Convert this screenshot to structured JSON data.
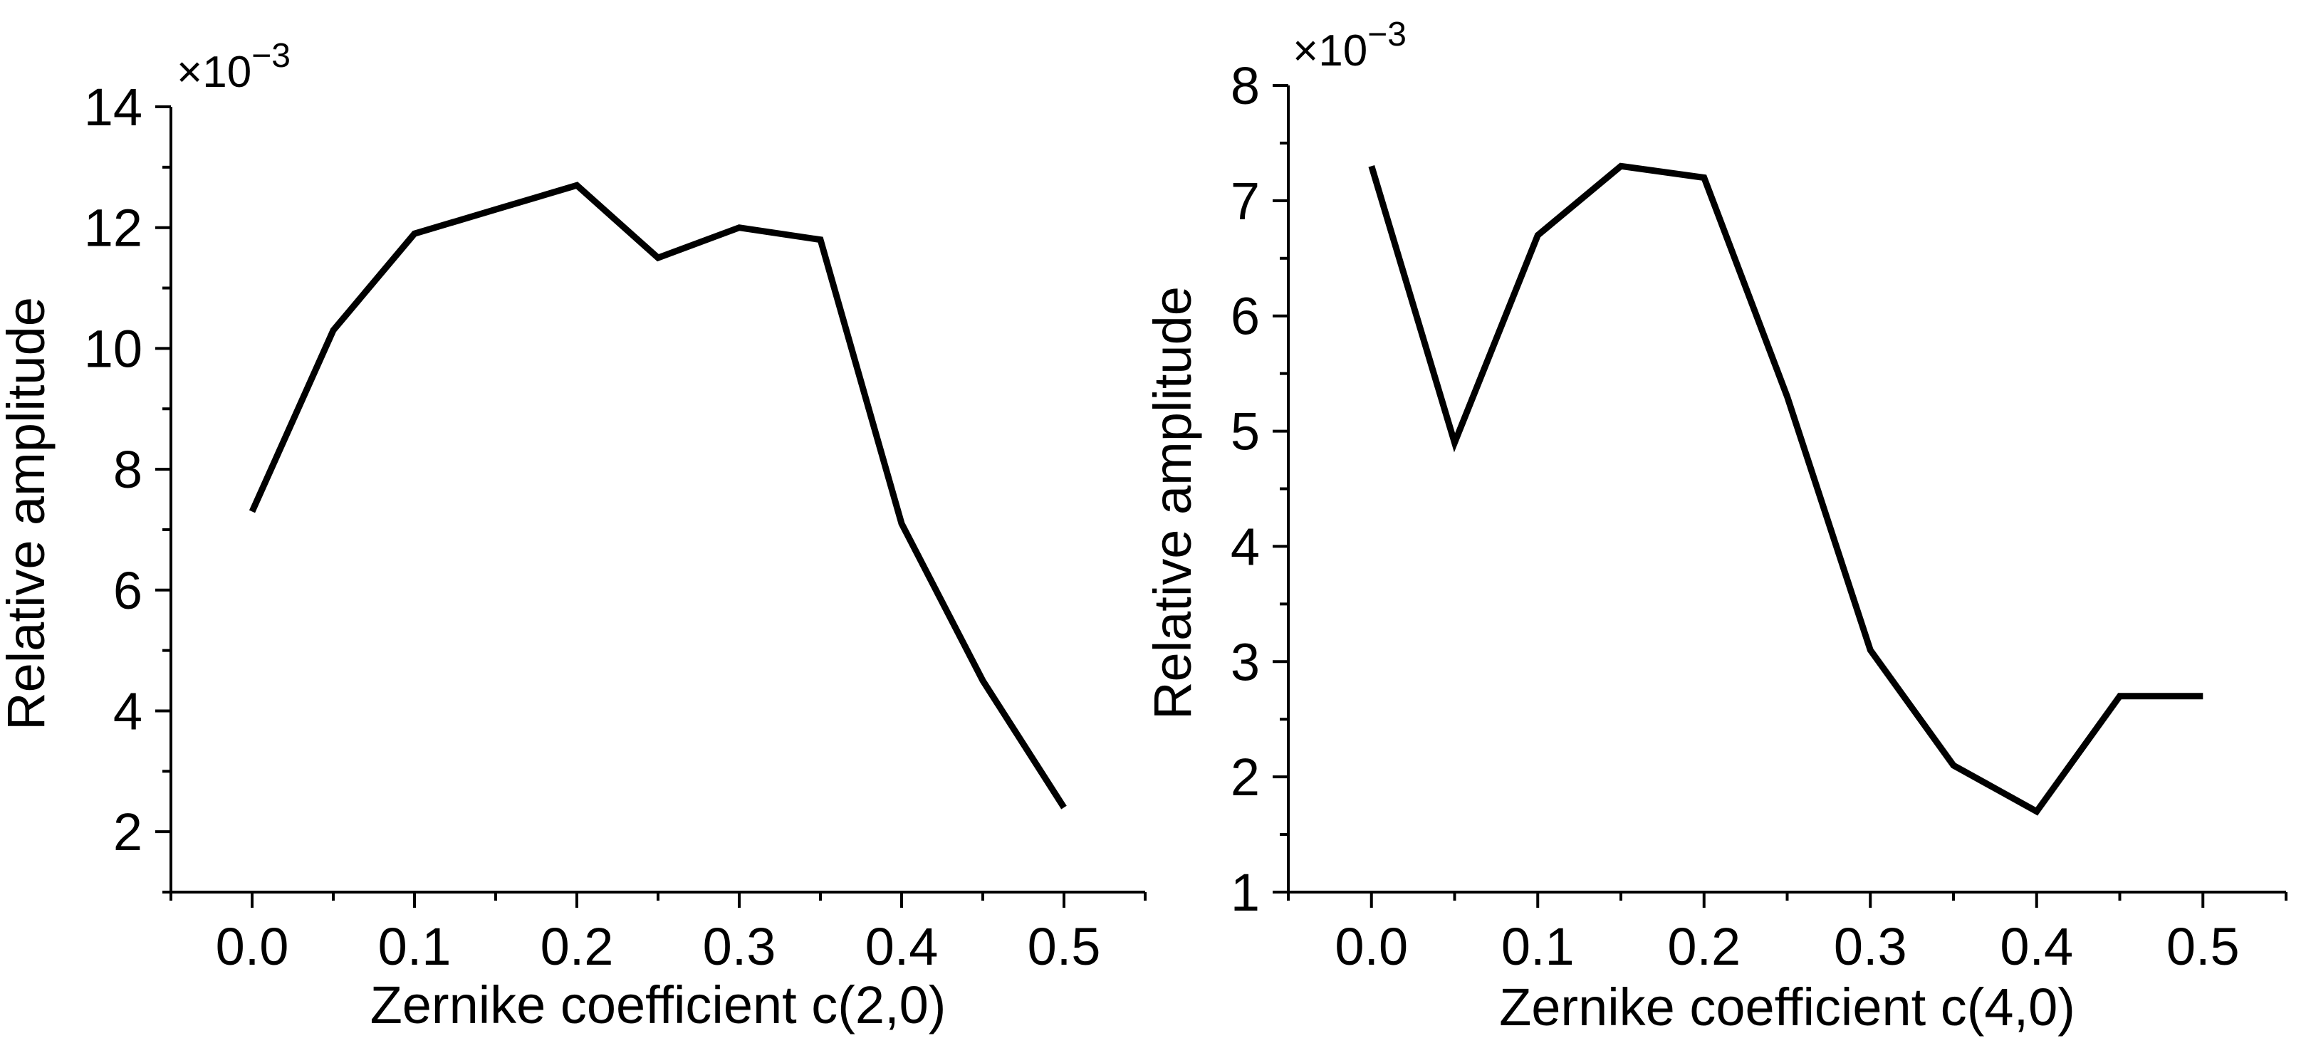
{
  "chart_data": [
    {
      "type": "line",
      "title": "",
      "xlabel": "Zernike coefficient c(2,0)",
      "ylabel": "Relative amplitude",
      "y_multiplier": {
        "base": "×10",
        "exponent": "−3"
      },
      "xlim": [
        -0.05,
        0.55
      ],
      "ylim": [
        1,
        14
      ],
      "xticks": [
        0.0,
        0.1,
        0.2,
        0.3,
        0.4,
        0.5
      ],
      "xtick_labels": [
        "0.0",
        "0.1",
        "0.2",
        "0.3",
        "0.4",
        "0.5"
      ],
      "yticks": [
        2,
        4,
        6,
        8,
        10,
        12,
        14
      ],
      "ytick_labels": [
        "2",
        "4",
        "6",
        "8",
        "10",
        "12",
        "14"
      ],
      "grid": false,
      "series": [
        {
          "name": "c(2,0)",
          "color": "#000000",
          "x": [
            0.0,
            0.05,
            0.1,
            0.15,
            0.2,
            0.25,
            0.3,
            0.35,
            0.4,
            0.45,
            0.5
          ],
          "values": [
            7.3,
            10.3,
            11.9,
            12.3,
            12.7,
            11.5,
            12.0,
            11.8,
            7.1,
            4.5,
            2.4
          ]
        }
      ]
    },
    {
      "type": "line",
      "title": "",
      "xlabel": "Zernike coefficient c(4,0)",
      "ylabel": "Relative amplitude",
      "y_multiplier": {
        "base": "×10",
        "exponent": "−3"
      },
      "xlim": [
        -0.05,
        0.55
      ],
      "ylim": [
        1,
        8
      ],
      "xticks": [
        0.0,
        0.1,
        0.2,
        0.3,
        0.4,
        0.5
      ],
      "xtick_labels": [
        "0.0",
        "0.1",
        "0.2",
        "0.3",
        "0.4",
        "0.5"
      ],
      "yticks": [
        1,
        2,
        3,
        4,
        5,
        6,
        7,
        8
      ],
      "ytick_labels": [
        "1",
        "2",
        "3",
        "4",
        "5",
        "6",
        "7",
        "8"
      ],
      "grid": false,
      "series": [
        {
          "name": "c(4,0)",
          "color": "#000000",
          "x": [
            0.0,
            0.05,
            0.1,
            0.15,
            0.2,
            0.25,
            0.3,
            0.35,
            0.4,
            0.45,
            0.5
          ],
          "values": [
            7.3,
            4.9,
            6.7,
            7.3,
            7.2,
            5.3,
            3.1,
            2.1,
            1.7,
            2.7,
            2.7
          ]
        }
      ]
    }
  ]
}
